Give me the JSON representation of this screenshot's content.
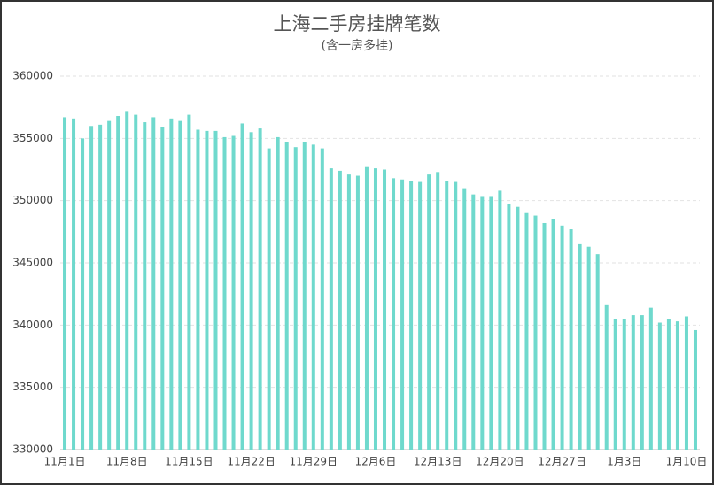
{
  "chart_data": {
    "type": "bar",
    "title": "上海二手房挂牌笔数",
    "subtitle": "(含一房多挂)",
    "categories": [
      "11月1日",
      null,
      null,
      null,
      null,
      null,
      null,
      "11月8日",
      null,
      null,
      null,
      null,
      null,
      null,
      "11月15日",
      null,
      null,
      null,
      null,
      null,
      null,
      "11月22日",
      null,
      null,
      null,
      null,
      null,
      null,
      "11月29日",
      null,
      null,
      null,
      null,
      null,
      null,
      "12月6日",
      null,
      null,
      null,
      null,
      null,
      null,
      "12月13日",
      null,
      null,
      null,
      null,
      null,
      null,
      "12月20日",
      null,
      null,
      null,
      null,
      null,
      null,
      "12月27日",
      null,
      null,
      null,
      null,
      null,
      null,
      "1月3日",
      null,
      null,
      null,
      null,
      null,
      null,
      "1月10日",
      null
    ],
    "values": [
      356700,
      356600,
      355000,
      356000,
      356100,
      356400,
      356800,
      357200,
      356900,
      356300,
      356700,
      355900,
      356600,
      356400,
      356900,
      355700,
      355600,
      355600,
      355100,
      355200,
      356200,
      355500,
      355800,
      354200,
      355100,
      354700,
      354300,
      354700,
      354500,
      354200,
      352600,
      352400,
      352100,
      352000,
      352700,
      352600,
      352500,
      351800,
      351700,
      351600,
      351500,
      352100,
      352300,
      351600,
      351500,
      351000,
      350500,
      350300,
      350300,
      350800,
      349700,
      349500,
      349000,
      348800,
      348200,
      348500,
      348000,
      347700,
      346500,
      346300,
      345700,
      341600,
      340500,
      340500,
      340800,
      340800,
      341400,
      340200,
      340500,
      340300,
      340700,
      339600
    ],
    "color": "#6fd9cd",
    "ylim": [
      330000,
      360000
    ],
    "yticks": [
      330000,
      335000,
      340000,
      345000,
      350000,
      355000,
      360000
    ],
    "grid": true
  }
}
